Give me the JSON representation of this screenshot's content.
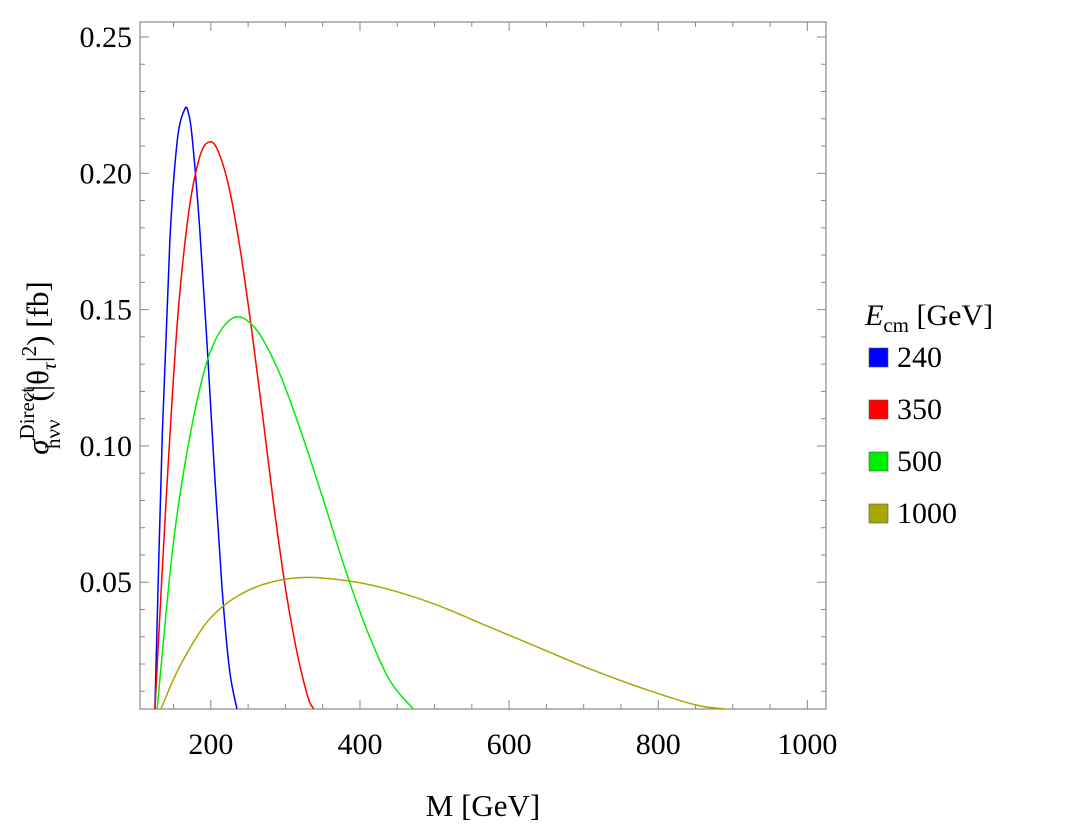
{
  "chart_data": {
    "type": "line",
    "title": "",
    "xlabel": "M [GeV]",
    "ylabel": {
      "sym": "σ",
      "sup": "Direct",
      "sub": "hνν",
      "arg_open": "(|θ",
      "arg_sub": "τ",
      "arg_close": "|",
      "arg_sup": "2",
      "tail": ") [fb]"
    },
    "xlim": [
      105,
      1025
    ],
    "ylim": [
      0.0035,
      0.2555
    ],
    "xticks": [
      200,
      400,
      600,
      800,
      1000
    ],
    "xtick_labels": [
      "200",
      "400",
      "600",
      "800",
      "1000"
    ],
    "yticks": [
      0.05,
      0.1,
      0.15,
      0.2,
      0.25
    ],
    "ytick_labels": [
      "0.05",
      "0.10",
      "0.15",
      "0.20",
      "0.25"
    ],
    "grid": false,
    "legend": {
      "placement": "right",
      "title_symbol": "E",
      "title_sub": "cm",
      "title_unit": " [GeV]"
    },
    "series": [
      {
        "name": "240",
        "color": "#0000ff",
        "x": [
          125,
          135,
          145,
          155,
          165,
          170,
          175,
          185,
          195,
          205,
          215,
          225,
          235
        ],
        "y": [
          0.0035,
          0.105,
          0.175,
          0.212,
          0.2235,
          0.222,
          0.213,
          0.18,
          0.137,
          0.09,
          0.048,
          0.018,
          0.0035
        ]
      },
      {
        "name": "350",
        "color": "#ff0000",
        "x": [
          125,
          140,
          155,
          170,
          185,
          198,
          210,
          225,
          240,
          255,
          270,
          285,
          300,
          315,
          330,
          338
        ],
        "y": [
          0.0035,
          0.08,
          0.145,
          0.185,
          0.206,
          0.2115,
          0.208,
          0.194,
          0.171,
          0.142,
          0.11,
          0.077,
          0.048,
          0.025,
          0.008,
          0.0035
        ]
      },
      {
        "name": "500",
        "color": "#00ee00",
        "x": [
          128,
          150,
          175,
          200,
          230,
          260,
          290,
          320,
          350,
          380,
          410,
          440,
          470,
          475
        ],
        "y": [
          0.0035,
          0.065,
          0.108,
          0.135,
          0.147,
          0.143,
          0.128,
          0.106,
          0.081,
          0.055,
          0.032,
          0.014,
          0.004,
          0.0035
        ]
      },
      {
        "name": "1000",
        "color": "#a8a800",
        "x": [
          133,
          160,
          200,
          250,
          310,
          370,
          430,
          500,
          570,
          640,
          710,
          780,
          850,
          890
        ],
        "y": [
          0.0035,
          0.02,
          0.037,
          0.047,
          0.0515,
          0.051,
          0.048,
          0.042,
          0.034,
          0.026,
          0.018,
          0.011,
          0.005,
          0.0035
        ]
      }
    ]
  }
}
